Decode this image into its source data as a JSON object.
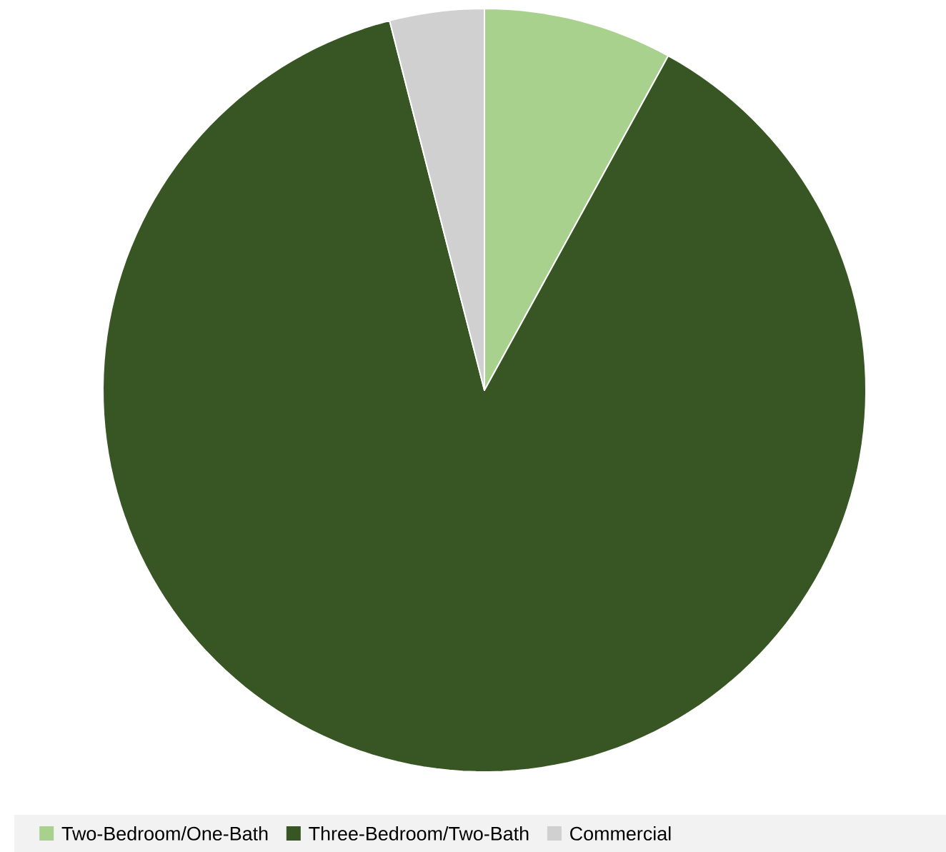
{
  "chart_data": {
    "type": "pie",
    "categories": [
      "Two-Bedroom/One-Bath",
      "Three-Bedroom/Two-Bath",
      "Commercial"
    ],
    "values": [
      8,
      88,
      4
    ],
    "colors": [
      "#a9d18e",
      "#375623",
      "#d0d0d0"
    ],
    "legend": "bottom"
  }
}
